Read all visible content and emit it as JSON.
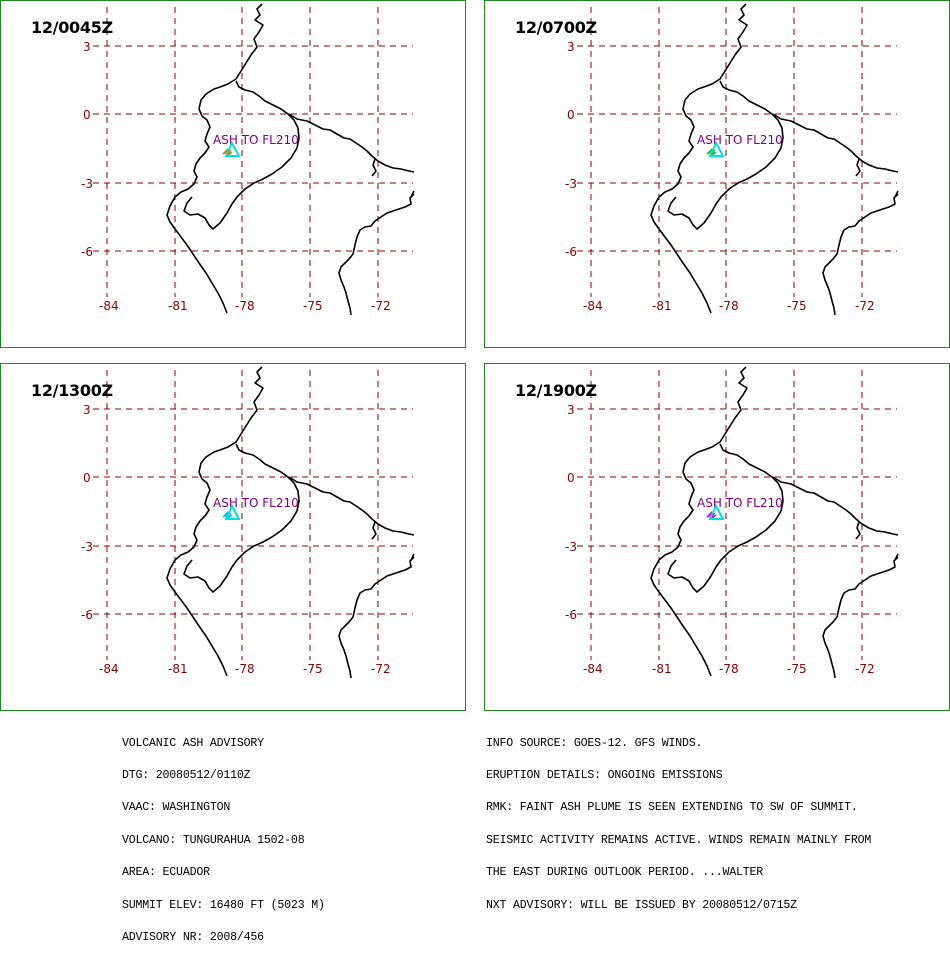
{
  "panels": [
    {
      "title": "12/0045Z",
      "ash_label": "ASH TO FL210",
      "plume_color": "#c88000"
    },
    {
      "title": "12/0700Z",
      "ash_label": "ASH TO FL210",
      "plume_color": "#2fb82f"
    },
    {
      "title": "12/1300Z",
      "ash_label": "ASH TO FL210",
      "plume_color": "#00c8e0"
    },
    {
      "title": "12/1900Z",
      "ash_label": "ASH TO FL210",
      "plume_color": "#e000e0"
    }
  ],
  "axes": {
    "lat_ticks": [
      "3",
      "0",
      "-3",
      "-6"
    ],
    "lon_ticks": [
      "-84",
      "-81",
      "-78",
      "-75",
      "-72"
    ]
  },
  "colors": {
    "border": "#1e8a1e",
    "grid": "#8b0000",
    "coastline": "#000000",
    "summit": "#00e0e0",
    "label": "#800080"
  },
  "advisory_left": [
    "VOLCANIC ASH ADVISORY",
    "DTG: 20080512/0110Z",
    "VAAC: WASHINGTON",
    "VOLCANO: TUNGURAHUA 1502-08",
    "AREA: ECUADOR",
    "SUMMIT ELEV: 16480 FT (5023 M)",
    "ADVISORY NR: 2008/456"
  ],
  "advisory_right": [
    "INFO SOURCE: GOES-12. GFS WINDS.",
    "ERUPTION DETAILS: ONGOING EMISSIONS",
    "RMK: FAINT ASH PLUME IS SEEN EXTENDING TO SW OF SUMMIT.",
    "SEISMIC ACTIVITY REMAINS ACTIVE. WINDS REMAIN MAINLY FROM",
    "THE EAST DURING OUTLOOK PERIOD. ...WALTER",
    "NXT ADVISORY: WILL BE ISSUED BY 20080512/0715Z"
  ]
}
